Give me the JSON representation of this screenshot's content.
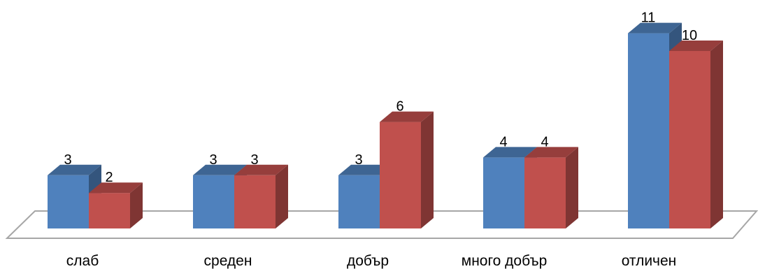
{
  "chart_data": {
    "type": "bar",
    "categories": [
      "слаб",
      "среден",
      "добър",
      "много добър",
      "отличен"
    ],
    "series": [
      {
        "values": [
          3,
          3,
          3,
          4,
          11
        ],
        "color": "#4F81BD"
      },
      {
        "values": [
          2,
          3,
          6,
          4,
          10
        ],
        "color": "#C0504D"
      }
    ],
    "data_labels": [
      [
        "3",
        "3",
        "3",
        "4",
        "11"
      ],
      [
        "2",
        "3",
        "6",
        "4",
        "10"
      ]
    ],
    "ylim": [
      0,
      11
    ],
    "grid": false,
    "legend": "none",
    "style": "3d-clustered-column"
  }
}
